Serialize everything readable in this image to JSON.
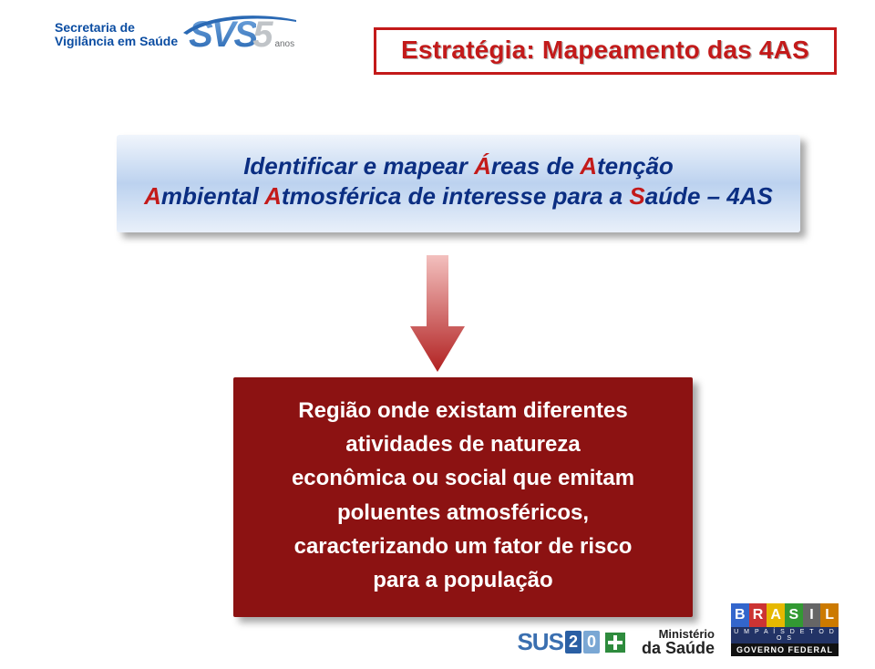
{
  "header": {
    "secretaria_line1": "Secretaria de",
    "secretaria_line2": "Vigilância em Saúde",
    "secretaria_color": "#0b4da2",
    "svs_letters": "SVS",
    "svs_five": "5",
    "svs_anos": "anos",
    "svs_gradient_top": "#6ea3dc",
    "svs_gradient_bottom": "#2a69b4",
    "svs_five_color": "#c0c4c8",
    "swoosh_color": "#2a69b4"
  },
  "title": {
    "text": "Estratégia: Mapeamento das 4AS",
    "text_color": "#c31a1a",
    "shadow_color": "#b9b9b9",
    "border_color": "#c31a1a",
    "font_size_pt": 21
  },
  "subtitle": {
    "bg_top": "#f0f5fc",
    "bg_mid": "#bcd2ef",
    "bg_bot": "#e9f0fa",
    "text_color": "#0b2e82",
    "accent_color": "#c31a1a",
    "font_size_pt": 20,
    "segments_line1": [
      {
        "t": "Identificar e mapear ",
        "a": false
      },
      {
        "t": "Á",
        "a": true
      },
      {
        "t": "reas de ",
        "a": false
      },
      {
        "t": "A",
        "a": true
      },
      {
        "t": "tenção",
        "a": false
      }
    ],
    "segments_line2": [
      {
        "t": "A",
        "a": true
      },
      {
        "t": "mbiental ",
        "a": false
      },
      {
        "t": "A",
        "a": true
      },
      {
        "t": "tmosférica de interesse para a ",
        "a": false
      },
      {
        "t": "S",
        "a": true
      },
      {
        "t": "aúde – 4AS",
        "a": false
      }
    ]
  },
  "arrow": {
    "fill_top": "#f3c0be",
    "fill_bottom": "#b12121",
    "width": 60,
    "height": 128
  },
  "result": {
    "bg": "#8c1212",
    "text_color": "#ffffff",
    "font_size_pt": 18,
    "lines": [
      "Região onde existam diferentes",
      "atividades de natureza",
      "econômica ou social  que emitam",
      "poluentes atmosféricos,",
      "caracterizando um fator de risco",
      "para a população"
    ]
  },
  "footer": {
    "sus": "SUS",
    "sus20_2": "2",
    "sus20_0": "0",
    "ms_line1": "Ministério",
    "ms_line2": "da Saúde",
    "brasil_letters": [
      "B",
      "R",
      "A",
      "S",
      "I",
      "L"
    ],
    "brasil_mid": "U M  P A Í S  D E  T O D O S",
    "brasil_bot": "GOVERNO FEDERAL"
  }
}
